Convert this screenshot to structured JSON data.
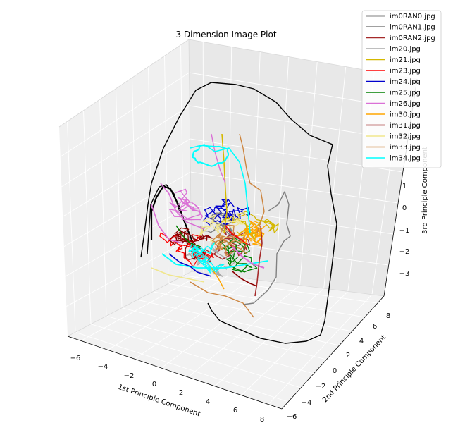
{
  "chart_data": {
    "type": "line",
    "projection": "3d",
    "title": "3 Dimension Image Plot",
    "xlabel": "1st Principle Component",
    "ylabel": "2nd Principle Component",
    "zlabel": "3rd Principle Component",
    "x_ticks": [
      "−6",
      "−4",
      "−2",
      "0",
      "2",
      "4",
      "6",
      "8"
    ],
    "y_ticks": [
      "−6",
      "−4",
      "−2",
      "0",
      "2",
      "4",
      "6",
      "8"
    ],
    "z_ticks": [
      "−3",
      "−2",
      "−1",
      "0",
      "1"
    ],
    "xlim": [
      -6.5,
      8.5
    ],
    "ylim": [
      -6.5,
      9.5
    ],
    "zlim": [
      -4,
      2
    ],
    "grid": true,
    "legend_position": "top-right",
    "series": [
      {
        "name": "im0RAN0.jpg",
        "color": "#000000"
      },
      {
        "name": "im0RAN1.jpg",
        "color": "#808080"
      },
      {
        "name": "im0RAN2.jpg",
        "color": "#a52a2a"
      },
      {
        "name": "im20.jpg",
        "color": "#a9a9a9"
      },
      {
        "name": "im21.jpg",
        "color": "#d4b800"
      },
      {
        "name": "im23.jpg",
        "color": "#ff0000"
      },
      {
        "name": "im24.jpg",
        "color": "#0000cd"
      },
      {
        "name": "im25.jpg",
        "color": "#008000"
      },
      {
        "name": "im26.jpg",
        "color": "#da70d6"
      },
      {
        "name": "im30.jpg",
        "color": "#ffa500"
      },
      {
        "name": "im31.jpg",
        "color": "#8b0000"
      },
      {
        "name": "im32.jpg",
        "color": "#f0e68c"
      },
      {
        "name": "im33.jpg",
        "color": "#cd853f"
      },
      {
        "name": "im34.jpg",
        "color": "#00ffff"
      }
    ]
  }
}
